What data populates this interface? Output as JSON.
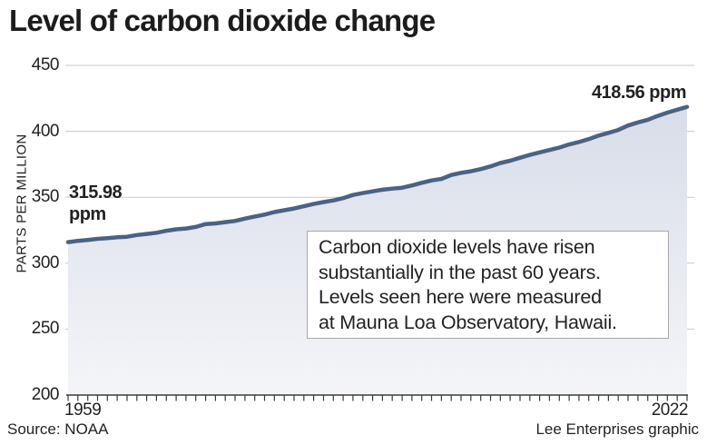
{
  "title": "Level of carbon dioxide change",
  "source": "Source: NOAA",
  "credit": "Lee Enterprises graphic",
  "annotations": {
    "start_value": "315.98",
    "start_unit": "ppm",
    "end": "418.56 ppm"
  },
  "callout": {
    "lines": [
      "Carbon dioxide levels have risen",
      "substantially in the past 60 years.",
      "Levels seen here were measured",
      "at Mauna Loa Observatory, Hawaii."
    ]
  },
  "chart_data": {
    "type": "area",
    "title": "Level of carbon dioxide change",
    "xlabel": "",
    "ylabel": "PARTS PER MILLION",
    "ylim": [
      200,
      450
    ],
    "yticks": [
      450,
      400,
      350,
      300,
      250,
      200
    ],
    "ytick_labels": [
      "450",
      "400",
      "350",
      "300",
      "250",
      "200"
    ],
    "x_start_label": "1959",
    "x_end_label": "2022",
    "grid": true,
    "legend": "none",
    "line_color": "#4a6284",
    "fill_top": "#d8dde9",
    "fill_bottom": "#f4f5f8",
    "grid_color": "#c9c9c9",
    "axis_color": "#3c3c3c",
    "years": [
      1959,
      1960,
      1961,
      1962,
      1963,
      1964,
      1965,
      1966,
      1967,
      1968,
      1969,
      1970,
      1971,
      1972,
      1973,
      1974,
      1975,
      1976,
      1977,
      1978,
      1979,
      1980,
      1981,
      1982,
      1983,
      1984,
      1985,
      1986,
      1987,
      1988,
      1989,
      1990,
      1991,
      1992,
      1993,
      1994,
      1995,
      1996,
      1997,
      1998,
      1999,
      2000,
      2001,
      2002,
      2003,
      2004,
      2005,
      2006,
      2007,
      2008,
      2009,
      2010,
      2011,
      2012,
      2013,
      2014,
      2015,
      2016,
      2017,
      2018,
      2019,
      2020,
      2021,
      2022
    ],
    "values": [
      315.98,
      316.91,
      317.64,
      318.45,
      318.99,
      319.62,
      320.04,
      321.37,
      322.18,
      323.05,
      324.62,
      325.68,
      326.32,
      327.46,
      329.68,
      330.19,
      331.13,
      332.03,
      333.84,
      335.41,
      336.84,
      338.76,
      340.12,
      341.48,
      343.15,
      344.87,
      346.35,
      347.61,
      349.31,
      351.69,
      353.2,
      354.45,
      355.7,
      356.54,
      357.21,
      358.96,
      360.97,
      362.74,
      363.88,
      366.84,
      368.54,
      369.71,
      371.32,
      373.45,
      375.98,
      377.7,
      379.98,
      382.09,
      384.02,
      385.83,
      387.64,
      390.1,
      391.85,
      394.06,
      396.74,
      398.81,
      401.01,
      404.41,
      406.76,
      408.72,
      411.65,
      414.21,
      416.41,
      418.56
    ]
  }
}
